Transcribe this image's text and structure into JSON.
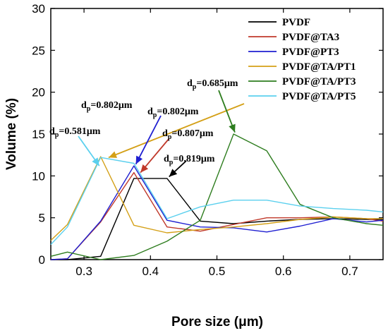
{
  "chart_data": {
    "type": "line",
    "xlabel": "Pore size (μm)",
    "ylabel": "Volume (%)",
    "xlim": [
      0.25,
      0.75
    ],
    "ylim": [
      0,
      30
    ],
    "xticks": [
      0.3,
      0.4,
      0.5,
      0.6,
      0.7
    ],
    "xtick_labels": [
      "0.3",
      "0.4",
      "0.5",
      "0.6",
      "0.7"
    ],
    "yticks": [
      0,
      5,
      10,
      15,
      20,
      25,
      30
    ],
    "ytick_labels": [
      "0",
      "5",
      "10",
      "15",
      "20",
      "25",
      "30"
    ],
    "grid": false,
    "legend_position": "top-right",
    "series": [
      {
        "name": "PVDF",
        "color": "#000000",
        "x": [
          0.25,
          0.275,
          0.325,
          0.375,
          0.425,
          0.475,
          0.525,
          0.575,
          0.625,
          0.675,
          0.725,
          0.75
        ],
        "y": [
          0,
          0.0,
          0.4,
          9.7,
          9.7,
          4.6,
          4.3,
          4.6,
          4.8,
          4.9,
          4.8,
          4.8
        ]
      },
      {
        "name": "PVDF@TA3",
        "color": "#c0392b",
        "x": [
          0.25,
          0.275,
          0.325,
          0.375,
          0.425,
          0.475,
          0.525,
          0.575,
          0.625,
          0.675,
          0.725,
          0.75
        ],
        "y": [
          0,
          0.1,
          4.5,
          10.4,
          3.9,
          3.4,
          4.2,
          5.0,
          5.0,
          5.1,
          4.9,
          4.6
        ]
      },
      {
        "name": "PVDF@PT3",
        "color": "#1f1fd1",
        "x": [
          0.25,
          0.275,
          0.325,
          0.375,
          0.425,
          0.475,
          0.525,
          0.575,
          0.625,
          0.675,
          0.725,
          0.75
        ],
        "y": [
          0,
          0.1,
          4.6,
          11.2,
          4.7,
          3.9,
          3.8,
          3.3,
          4.0,
          4.9,
          4.5,
          4.7
        ]
      },
      {
        "name": "PVDF@TA/PT1",
        "color": "#d4a017",
        "x": [
          0.25,
          0.275,
          0.325,
          0.375,
          0.425,
          0.475,
          0.525,
          0.575,
          0.625,
          0.675,
          0.725,
          0.75
        ],
        "y": [
          2.3,
          4.2,
          12.3,
          4.1,
          3.2,
          3.6,
          3.9,
          4.3,
          4.8,
          5.1,
          4.9,
          4.9
        ]
      },
      {
        "name": "PVDF@TA/PT3",
        "color": "#2e7d1f",
        "x": [
          0.25,
          0.275,
          0.325,
          0.375,
          0.425,
          0.475,
          0.525,
          0.575,
          0.625,
          0.675,
          0.725,
          0.75
        ],
        "y": [
          0.4,
          0.9,
          0.0,
          0.5,
          2.2,
          4.7,
          15.0,
          13.0,
          6.6,
          5.0,
          4.3,
          4.1
        ]
      },
      {
        "name": "PVDF@TA/PT5",
        "color": "#5bd0ee",
        "x": [
          0.25,
          0.275,
          0.325,
          0.375,
          0.425,
          0.475,
          0.525,
          0.575,
          0.625,
          0.675,
          0.725,
          0.75
        ],
        "y": [
          1.8,
          3.9,
          12.2,
          11.5,
          4.9,
          6.3,
          7.1,
          7.1,
          6.4,
          6.1,
          5.9,
          5.7
        ]
      }
    ],
    "annotations": [
      {
        "text": "d",
        "sub": "p",
        "rest": "=0.802μm",
        "color": "#d4a017",
        "point": [
          0.337,
          12.2
        ]
      },
      {
        "text": "d",
        "sub": "p",
        "rest": "=0.581μm",
        "color": "#5bd0ee",
        "point": [
          0.323,
          11.2
        ]
      },
      {
        "text": "d",
        "sub": "p",
        "rest": "=0.802μm",
        "color": "#1f1fd1",
        "point": [
          0.378,
          11.4
        ]
      },
      {
        "text": "d",
        "sub": "p",
        "rest": "=0.807μm",
        "color": "#c0392b",
        "point": [
          0.385,
          10.4
        ]
      },
      {
        "text": "d",
        "sub": "p",
        "rest": "=0.819μm",
        "color": "#000000",
        "point": [
          0.428,
          9.9
        ]
      },
      {
        "text": "d",
        "sub": "p",
        "rest": "=0.685μm",
        "color": "#2e7d1f",
        "point": [
          0.527,
          15.2
        ]
      }
    ]
  }
}
